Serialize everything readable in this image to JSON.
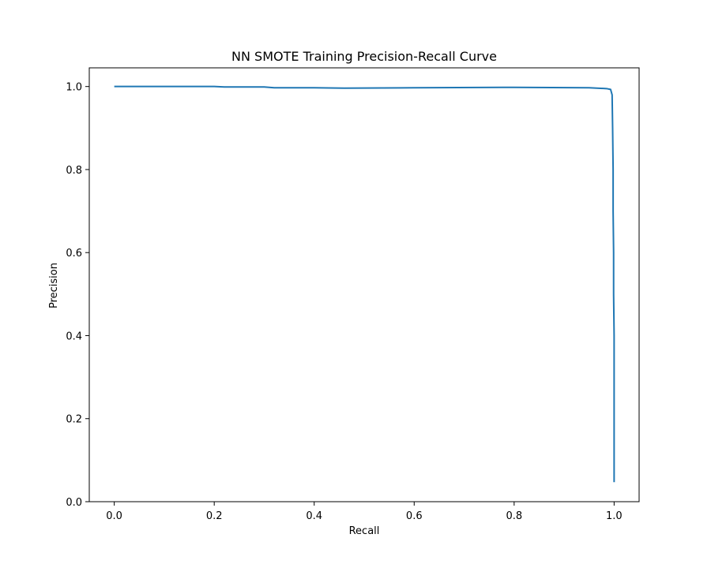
{
  "chart_data": {
    "type": "line",
    "title": "NN SMOTE Training Precision-Recall Curve",
    "xlabel": "Recall",
    "ylabel": "Precision",
    "xlim": [
      -0.05,
      1.05
    ],
    "ylim": [
      0.0,
      1.045
    ],
    "grid": false,
    "xticks": [
      0.0,
      0.2,
      0.4,
      0.6,
      0.8,
      1.0
    ],
    "yticks": [
      0.0,
      0.2,
      0.4,
      0.6,
      0.8,
      1.0
    ],
    "xtick_labels": [
      "0.0",
      "0.2",
      "0.4",
      "0.6",
      "0.8",
      "1.0"
    ],
    "ytick_labels": [
      "0.0",
      "0.2",
      "0.4",
      "0.6",
      "0.8",
      "1.0"
    ],
    "series": [
      {
        "color": "#1f77b4",
        "x": [
          0.0,
          0.1,
          0.2,
          0.22,
          0.3,
          0.32,
          0.4,
          0.46,
          0.6,
          0.8,
          0.95,
          0.985,
          0.993,
          0.996,
          0.997,
          0.998,
          0.998,
          0.999,
          0.999,
          1.0,
          1.0,
          1.0,
          1.0
        ],
        "y": [
          1.0,
          1.0,
          1.0,
          0.999,
          0.999,
          0.997,
          0.997,
          0.996,
          0.997,
          0.998,
          0.997,
          0.995,
          0.993,
          0.98,
          0.9,
          0.8,
          0.7,
          0.6,
          0.5,
          0.4,
          0.2,
          0.1,
          0.047
        ]
      }
    ]
  }
}
